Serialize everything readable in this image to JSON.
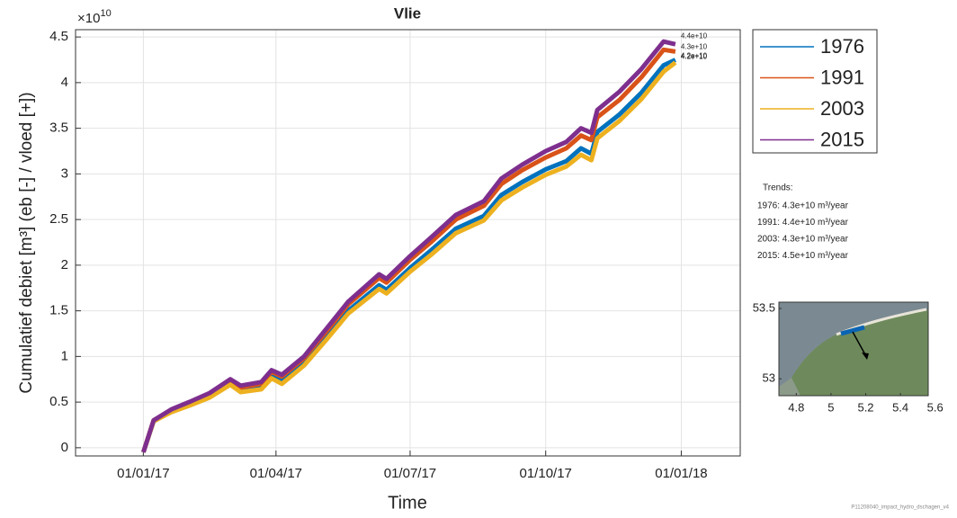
{
  "chart_data": {
    "type": "line",
    "title": "Vlie",
    "x_label": "Time",
    "y_label": "Cumulatief debiet [m³] (eb [-] / vloed [+])",
    "y_multiplier": {
      "base": "×10",
      "exponent": "10"
    },
    "x": [
      "2017-01-01",
      "2017-01-08",
      "2017-01-20",
      "2017-02-01",
      "2017-02-15",
      "2017-03-01",
      "2017-03-08",
      "2017-03-22",
      "2017-03-29",
      "2017-04-05",
      "2017-04-20",
      "2017-05-05",
      "2017-05-20",
      "2017-06-10",
      "2017-06-15",
      "2017-07-01",
      "2017-07-15",
      "2017-08-01",
      "2017-08-20",
      "2017-09-01",
      "2017-09-15",
      "2017-10-01",
      "2017-10-15",
      "2017-10-25",
      "2017-11-01",
      "2017-11-05",
      "2017-11-20",
      "2017-12-05",
      "2017-12-20",
      "2017-12-28"
    ],
    "series": [
      {
        "name": "1976",
        "color": "#0072bd",
        "end_label": "4.2e+10",
        "values": [
          -0.05,
          0.29,
          0.4,
          0.47,
          0.56,
          0.7,
          0.63,
          0.66,
          0.78,
          0.73,
          0.93,
          1.21,
          1.5,
          1.78,
          1.73,
          1.97,
          2.16,
          2.4,
          2.54,
          2.77,
          2.91,
          3.05,
          3.14,
          3.28,
          3.22,
          3.46,
          3.65,
          3.89,
          4.19,
          4.25
        ]
      },
      {
        "name": "1991",
        "color": "#d95319",
        "end_label": "4.3e+10",
        "values": [
          -0.05,
          0.3,
          0.41,
          0.49,
          0.59,
          0.73,
          0.66,
          0.7,
          0.83,
          0.78,
          0.98,
          1.27,
          1.57,
          1.86,
          1.81,
          2.06,
          2.25,
          2.5,
          2.65,
          2.89,
          3.04,
          3.18,
          3.28,
          3.42,
          3.37,
          3.62,
          3.81,
          4.06,
          4.36,
          4.34
        ]
      },
      {
        "name": "2003",
        "color": "#edb120",
        "end_label": "4.2e+10",
        "values": [
          -0.05,
          0.29,
          0.39,
          0.46,
          0.55,
          0.69,
          0.61,
          0.64,
          0.76,
          0.7,
          0.9,
          1.18,
          1.47,
          1.74,
          1.69,
          1.93,
          2.11,
          2.35,
          2.49,
          2.71,
          2.85,
          2.99,
          3.08,
          3.21,
          3.15,
          3.39,
          3.58,
          3.82,
          4.12,
          4.22
        ]
      },
      {
        "name": "2015",
        "color": "#7e2f8e",
        "end_label": "4.4e+10",
        "values": [
          -0.05,
          0.3,
          0.42,
          0.5,
          0.6,
          0.75,
          0.68,
          0.72,
          0.85,
          0.8,
          1.0,
          1.3,
          1.6,
          1.9,
          1.85,
          2.1,
          2.3,
          2.55,
          2.7,
          2.95,
          3.1,
          3.25,
          3.35,
          3.5,
          3.45,
          3.7,
          3.9,
          4.15,
          4.45,
          4.42
        ]
      }
    ],
    "xlim": [
      "2016-11-16",
      "2018-02-10"
    ],
    "xticks": [
      {
        "value": "2017-01-01",
        "label": "01/01/17"
      },
      {
        "value": "2017-04-01",
        "label": "01/04/17"
      },
      {
        "value": "2017-07-01",
        "label": "01/07/17"
      },
      {
        "value": "2017-10-01",
        "label": "01/10/17"
      },
      {
        "value": "2018-01-01",
        "label": "01/01/18"
      }
    ],
    "ylim": [
      -0.09,
      4.58
    ],
    "yticks": [
      0,
      0.5,
      1,
      1.5,
      2,
      2.5,
      3,
      3.5,
      4,
      4.5
    ],
    "grid": true,
    "trends": {
      "title": "Trends:",
      "items": [
        "1976: 4.3e+10 m³/year",
        "1991: 4.4e+10 m³/year",
        "2003: 4.3e+10 m³/year",
        "2015: 4.5e+10 m³/year"
      ]
    }
  },
  "inset": {
    "xlim": [
      4.7,
      5.56
    ],
    "ylim": [
      52.88,
      53.545
    ],
    "xticks": [
      4.8,
      5,
      5.2,
      5.4,
      5.6
    ],
    "yticks": [
      53,
      53.5
    ]
  },
  "footer": "P11208040_impact_hydro_dschagen_v4"
}
